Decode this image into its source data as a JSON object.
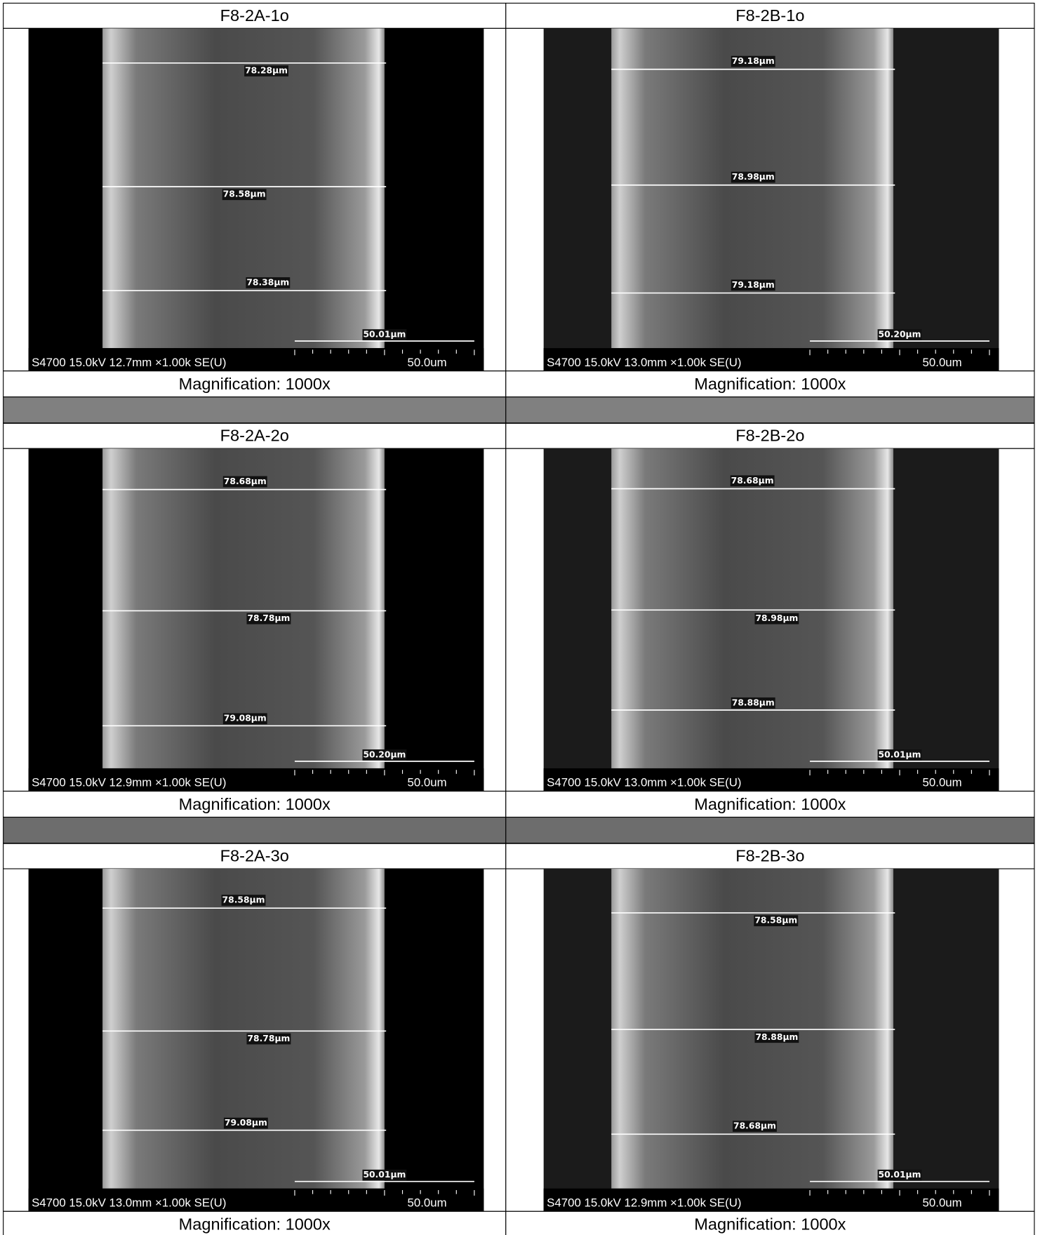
{
  "panels": [
    {
      "title": "F8-2A-1o",
      "measurements": [
        "78.28µm",
        "78.58µm",
        "78.38µm"
      ],
      "scale_measurement": "50.01µm",
      "info": "S4700 15.0kV 12.7mm ×1.00k SE(U)",
      "scale": "50.0um",
      "caption": "Magnification: 1000x"
    },
    {
      "title": "F8-2B-1o",
      "measurements": [
        "79.18µm",
        "78.98µm",
        "79.18µm"
      ],
      "scale_measurement": "50.20µm",
      "info": "S4700 15.0kV 13.0mm ×1.00k SE(U)",
      "scale": "50.0um",
      "caption": "Magnification: 1000x"
    },
    {
      "title": "F8-2A-2o",
      "measurements": [
        "78.68µm",
        "78.78µm",
        "79.08µm"
      ],
      "scale_measurement": "50.20µm",
      "info": "S4700 15.0kV 12.9mm ×1.00k SE(U)",
      "scale": "50.0um",
      "caption": "Magnification: 1000x"
    },
    {
      "title": "F8-2B-2o",
      "measurements": [
        "78.68µm",
        "78.98µm",
        "78.88µm"
      ],
      "scale_measurement": "50.01µm",
      "info": "S4700 15.0kV 13.0mm ×1.00k SE(U)",
      "scale": "50.0um",
      "caption": "Magnification: 1000x"
    },
    {
      "title": "F8-2A-3o",
      "measurements": [
        "78.58µm",
        "78.78µm",
        "79.08µm"
      ],
      "scale_measurement": "50.01µm",
      "info": "S4700 15.0kV 13.0mm ×1.00k SE(U)",
      "scale": "50.0um",
      "caption": "Magnification: 1000x"
    },
    {
      "title": "F8-2B-3o",
      "measurements": [
        "78.58µm",
        "78.88µm",
        "78.68µm"
      ],
      "scale_measurement": "50.01µm",
      "info": "S4700 15.0kV 12.9mm ×1.00k SE(U)",
      "scale": "50.0um",
      "caption": "Magnification: 1000x"
    }
  ]
}
